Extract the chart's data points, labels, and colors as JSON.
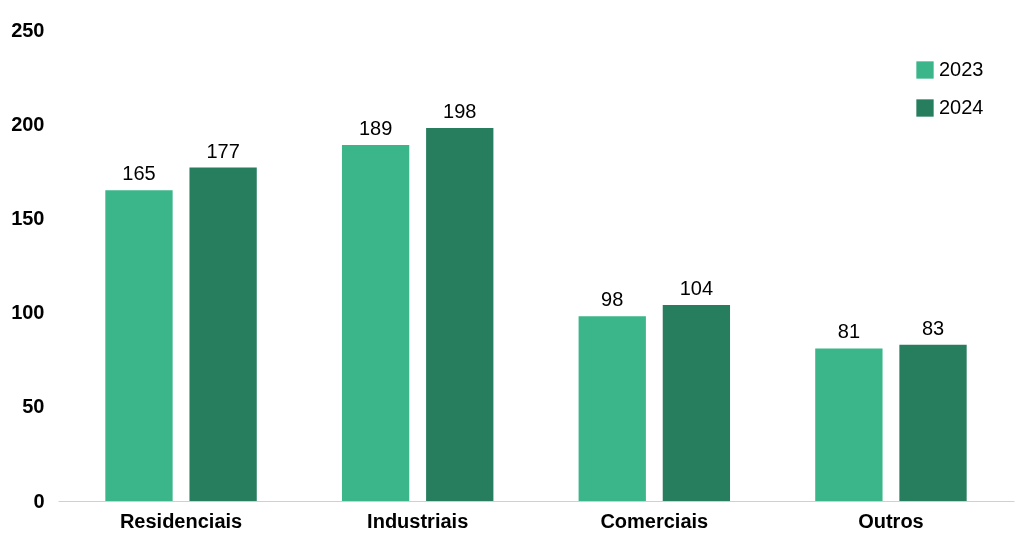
{
  "chart_data": {
    "type": "bar",
    "categories": [
      "Residenciais",
      "Industriais",
      "Comerciais",
      "Outros"
    ],
    "series": [
      {
        "name": "2023",
        "color": "#3bb58a",
        "values": [
          165,
          189,
          98,
          81
        ]
      },
      {
        "name": "2024",
        "color": "#277e5e",
        "values": [
          177,
          198,
          104,
          83
        ]
      }
    ],
    "ylim": [
      0,
      250
    ],
    "yticks": [
      0,
      50,
      100,
      150,
      200,
      250
    ],
    "grid": false,
    "legend": "top right",
    "data_labels": true
  }
}
